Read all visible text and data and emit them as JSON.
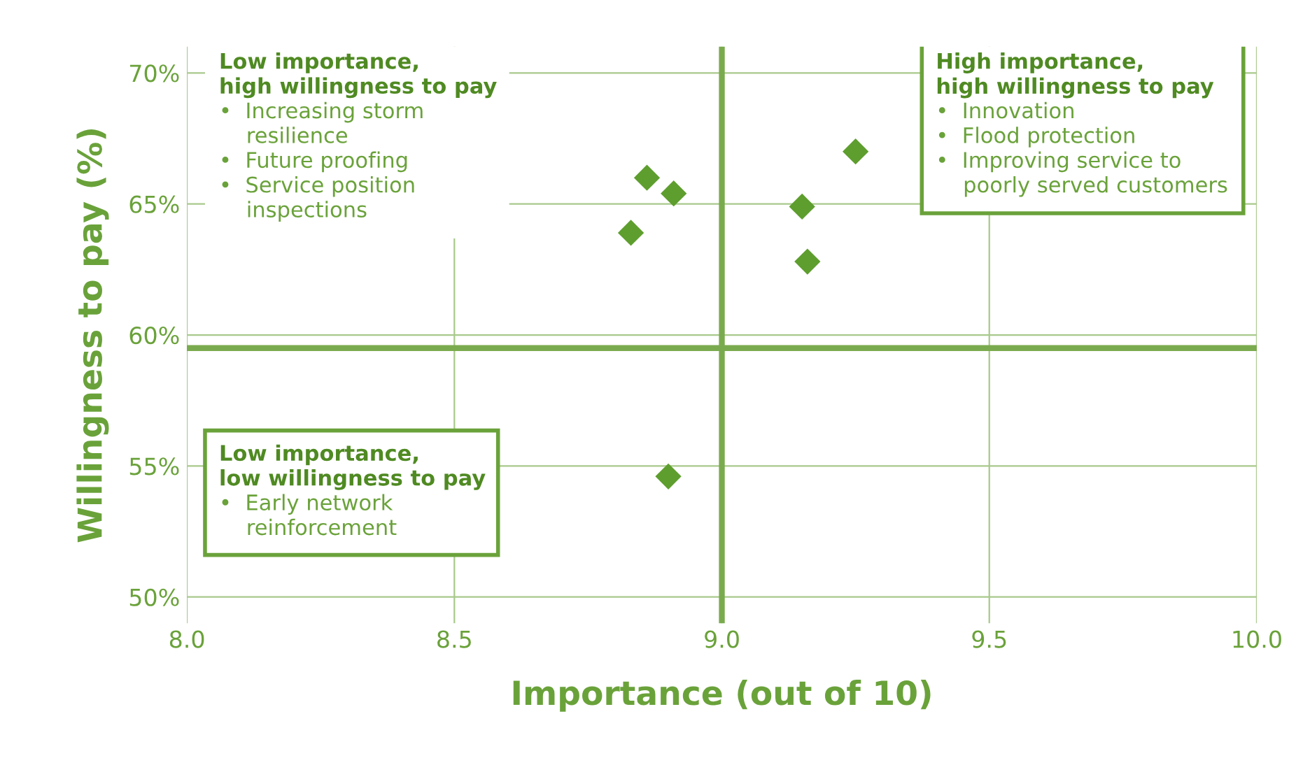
{
  "chart_data": {
    "type": "scatter",
    "xlabel": "Importance (out of 10)",
    "ylabel": "Willingness to pay (%)",
    "series": [
      {
        "color": "#5e9e2e",
        "x": [
          8.86,
          8.91,
          9.15,
          8.83,
          9.16,
          9.25,
          8.9
        ],
        "values": [
          66.0,
          65.4,
          64.9,
          63.9,
          62.8,
          67.0,
          54.6
        ]
      }
    ],
    "marker": "diamond",
    "xlim": [
      8.0,
      10.0
    ],
    "xticks": [
      {
        "value": 8.0,
        "label": "8.0"
      },
      {
        "value": 8.5,
        "label": "8.5"
      },
      {
        "value": 9.0,
        "label": "9.0"
      },
      {
        "value": 9.5,
        "label": "9.5"
      },
      {
        "value": 10.0,
        "label": "10.0"
      }
    ],
    "ylim": [
      49,
      71
    ],
    "yticks": [
      {
        "value": 50,
        "label": "50%"
      },
      {
        "value": 55,
        "label": "55%"
      },
      {
        "value": 60,
        "label": "60%"
      },
      {
        "value": 65,
        "label": "65%"
      },
      {
        "value": 70,
        "label": "70%"
      }
    ],
    "grid": true,
    "ref_lines": [
      {
        "axis": "x",
        "value": 9.0,
        "color": "#7aaa4e"
      },
      {
        "axis": "y",
        "value": 59.5,
        "color": "#7aaa4e"
      }
    ],
    "annotations": [
      "Low importance,\nhigh willingness to pay\n•  Increasing storm\n    resilience\n•  Future proofing\n•  Service position\n    inspections",
      "High importance,\nhigh willingness to pay\n•  Innovation\n•  Flood protection\n•  Improving service to\n    poorly served customers",
      "Low importance,\nlow willingness to pay\n•  Early network\n    reinforcement"
    ]
  }
}
